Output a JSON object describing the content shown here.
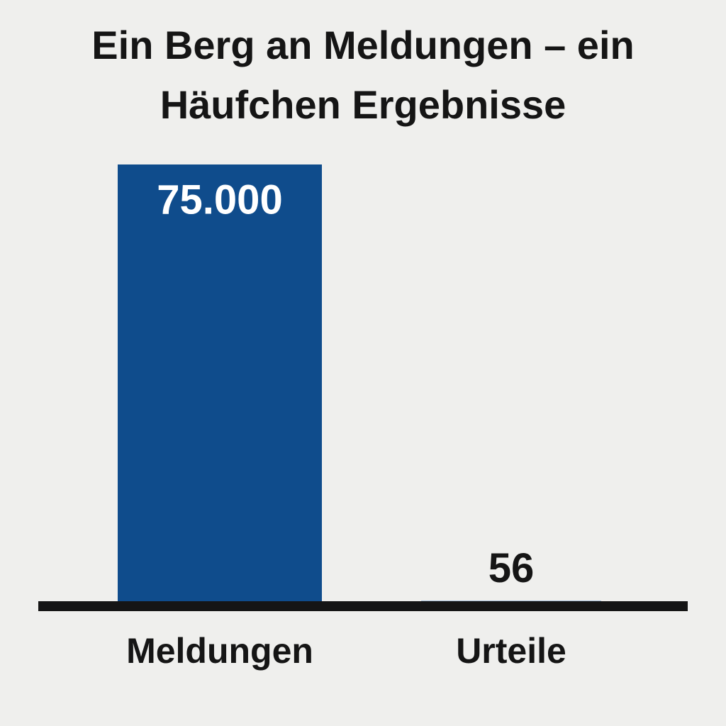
{
  "chart_data": {
    "type": "bar",
    "title": "Ein Berg an Meldungen – ein Häufchen Ergebnisse",
    "categories": [
      "Meldungen",
      "Urteile"
    ],
    "values": [
      75000,
      56
    ],
    "value_labels": [
      "75.000",
      "56"
    ],
    "colors": [
      "#0f4c8c",
      "#4a7fb8"
    ],
    "ylim": [
      0,
      75000
    ]
  }
}
